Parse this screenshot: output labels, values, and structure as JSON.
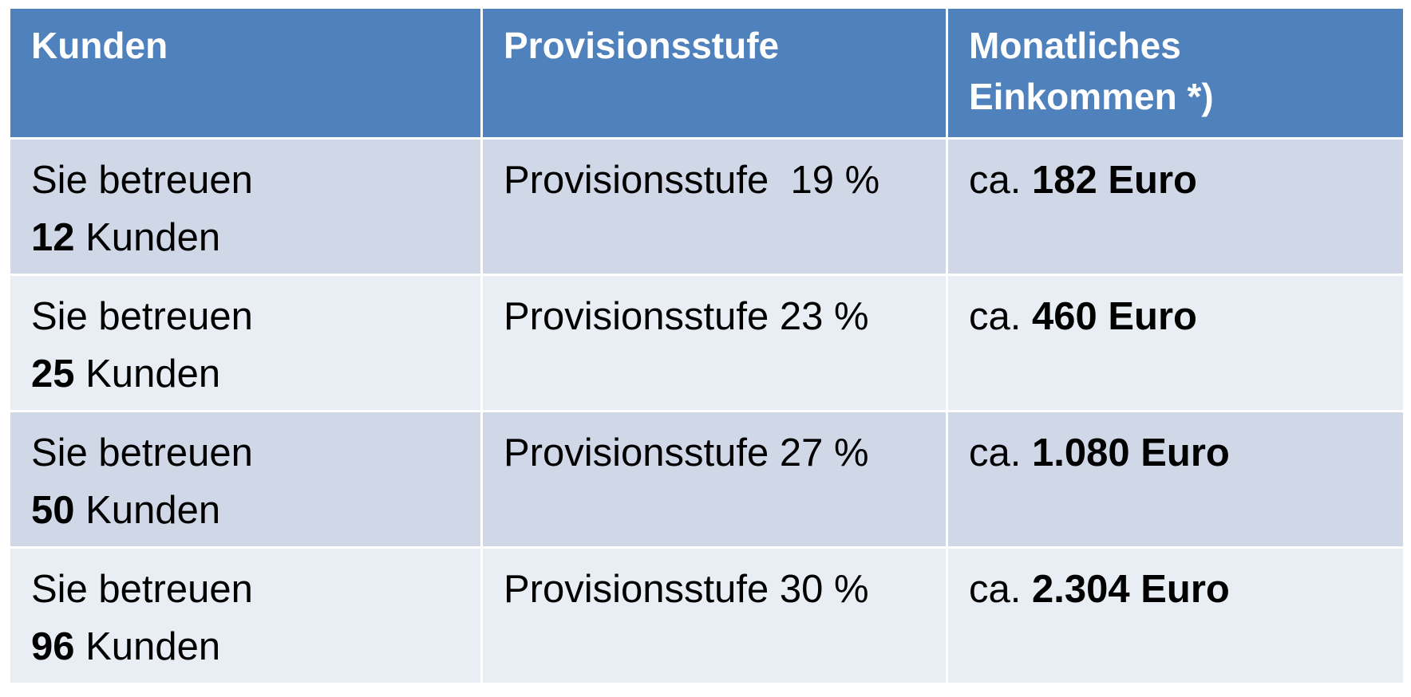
{
  "table": {
    "headers": [
      "Kunden",
      "Provisionsstufe",
      "Monatliches Einkommen *)"
    ],
    "header_lines": {
      "col3_line1": "Monatliches",
      "col3_line2": "Einkommen *)"
    },
    "rows": [
      {
        "kunden_prefix": "Sie betreuen",
        "kunden_count": "12",
        "kunden_suffix": " Kunden",
        "stufe": "Provisionsstufe  19 %",
        "einkommen_prefix": "ca. ",
        "einkommen_value": "182 Euro"
      },
      {
        "kunden_prefix": "Sie betreuen",
        "kunden_count": "25",
        "kunden_suffix": " Kunden",
        "stufe": "Provisionsstufe 23 %",
        "einkommen_prefix": "ca. ",
        "einkommen_value": "460 Euro"
      },
      {
        "kunden_prefix": "Sie betreuen",
        "kunden_count": "50",
        "kunden_suffix": " Kunden",
        "stufe": "Provisionsstufe 27 %",
        "einkommen_prefix": "ca. ",
        "einkommen_value": "1.080 Euro"
      },
      {
        "kunden_prefix": "Sie betreuen",
        "kunden_count": "96",
        "kunden_suffix": " Kunden",
        "stufe": "Provisionsstufe 30 %",
        "einkommen_prefix": "ca. ",
        "einkommen_value": "2.304 Euro"
      }
    ]
  },
  "colors": {
    "header_bg": "#4f81bd",
    "row_dark": "#d0d8e8",
    "row_light": "#e9edf4"
  }
}
